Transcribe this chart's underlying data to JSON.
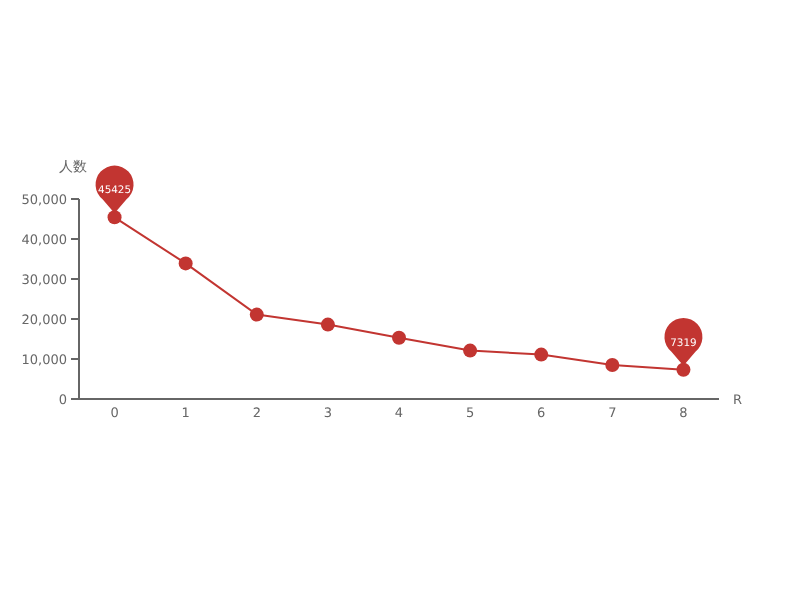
{
  "chart_data": {
    "type": "line",
    "xlabel": "R",
    "ylabel": "人数",
    "categories": [
      "0",
      "1",
      "2",
      "3",
      "4",
      "5",
      "6",
      "7",
      "8"
    ],
    "series": [
      {
        "color": "#c23531",
        "values": [
          45425,
          33900,
          21100,
          18600,
          15300,
          12100,
          11100,
          8500,
          7319
        ]
      }
    ],
    "ylim": [
      0,
      50000
    ],
    "yticks": [
      {
        "value": 0,
        "label": "0"
      },
      {
        "value": 10000,
        "label": "10,000"
      },
      {
        "value": 20000,
        "label": "20,000"
      },
      {
        "value": 30000,
        "label": "30,000"
      },
      {
        "value": 40000,
        "label": "40,000"
      },
      {
        "value": 50000,
        "label": "50,000"
      }
    ],
    "marker": "circle",
    "grid": false,
    "annotations": [
      {
        "text": "45425",
        "x": "0",
        "y": 45425
      },
      {
        "text": "7319",
        "x": "8",
        "y": 7319
      }
    ]
  }
}
